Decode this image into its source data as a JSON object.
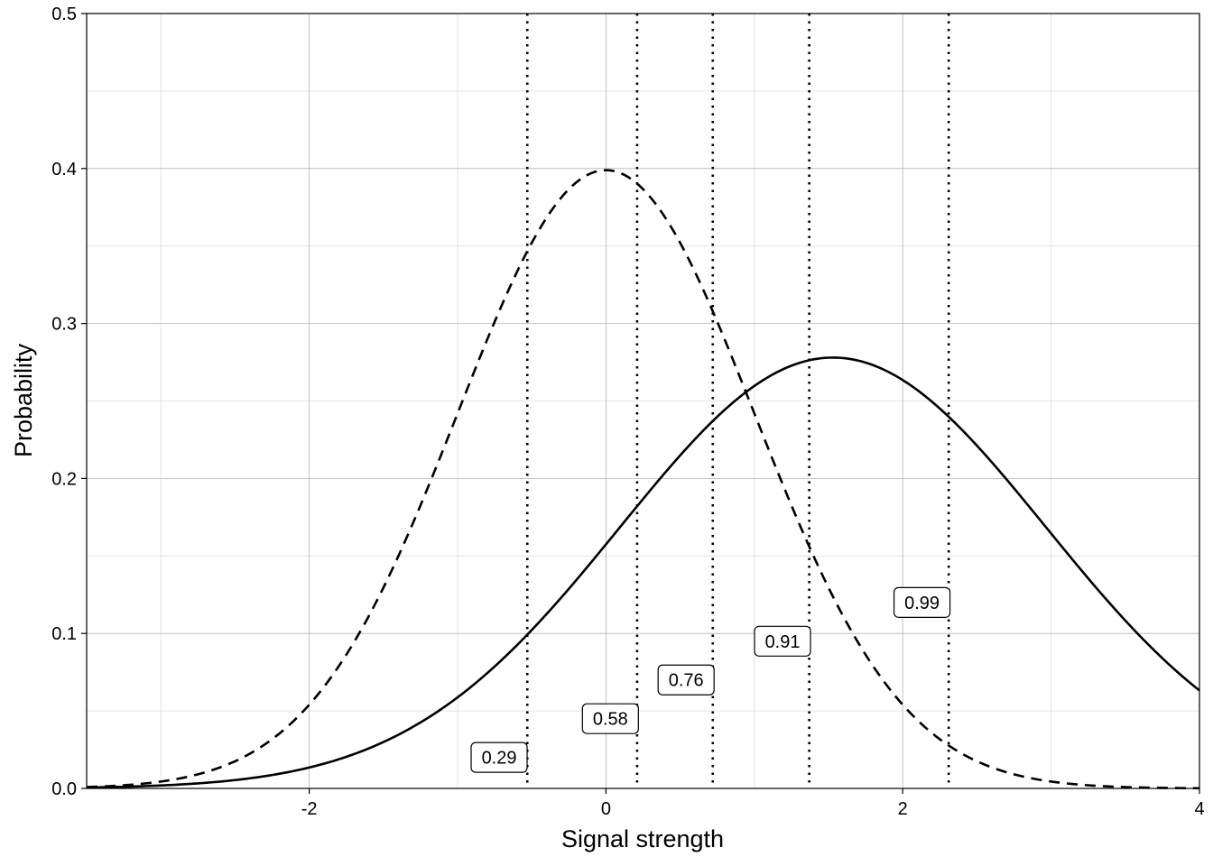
{
  "chart_data": {
    "type": "line",
    "title": "",
    "xlabel": "Signal strength",
    "ylabel": "Probability",
    "xlim": [
      -3.5,
      4
    ],
    "ylim": [
      0,
      0.5
    ],
    "x_ticks": [
      -2,
      0,
      2,
      4
    ],
    "x_tick_labels": [
      "-2",
      "0",
      "2",
      "4"
    ],
    "y_ticks": [
      0.0,
      0.1,
      0.2,
      0.3,
      0.4,
      0.5
    ],
    "y_tick_labels": [
      "0.0",
      "0.1",
      "0.2",
      "0.3",
      "0.4",
      "0.5"
    ],
    "grid": true,
    "legend": "none",
    "series": [
      {
        "style": "dashed",
        "distribution": "normal",
        "mean": 0,
        "sd": 1,
        "x": [
          -3.5,
          -3.0,
          -2.5,
          -2.0,
          -1.5,
          -1.0,
          -0.5,
          0.0,
          0.5,
          1.0,
          1.5,
          2.0,
          2.5,
          3.0,
          3.5,
          4.0
        ],
        "values": [
          0.0009,
          0.0044,
          0.0175,
          0.054,
          0.1295,
          0.242,
          0.3521,
          0.3989,
          0.3521,
          0.242,
          0.1295,
          0.054,
          0.0175,
          0.0044,
          0.0009,
          0.0001
        ]
      },
      {
        "style": "solid",
        "distribution": "normal",
        "mean": 1.53,
        "sd": 1.435,
        "x": [
          -3.5,
          -3.0,
          -2.5,
          -2.0,
          -1.5,
          -1.0,
          -0.5,
          0.0,
          0.5,
          1.0,
          1.5,
          2.0,
          2.5,
          3.0,
          3.5,
          4.0
        ],
        "values": [
          0.0005,
          0.0019,
          0.0053,
          0.0134,
          0.0298,
          0.0587,
          0.1022,
          0.1571,
          0.2153,
          0.2601,
          0.278,
          0.2632,
          0.2207,
          0.1637,
          0.1075,
          0.0625
        ]
      }
    ],
    "thresholds": [
      {
        "x": -0.53,
        "label": "0.29",
        "label_x": -0.72,
        "label_y": 0.02
      },
      {
        "x": 0.21,
        "label": "0.58",
        "label_x": 0.03,
        "label_y": 0.045
      },
      {
        "x": 0.72,
        "label": "0.76",
        "label_x": 0.54,
        "label_y": 0.07
      },
      {
        "x": 1.37,
        "label": "0.91",
        "label_x": 1.19,
        "label_y": 0.095
      },
      {
        "x": 2.31,
        "label": "0.99",
        "label_x": 2.13,
        "label_y": 0.12
      }
    ]
  }
}
